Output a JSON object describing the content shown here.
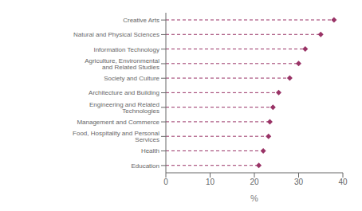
{
  "chart_data": {
    "type": "lollipop",
    "orientation": "horizontal",
    "categories": [
      "Education",
      "Health",
      "Food, Hospitality and Personal Services",
      "Management and Commerce",
      "Engineering and Related Technologies",
      "Architecture and Building",
      "Society and Culture",
      "Agriculture, Environmental and Related Studies",
      "Information Technology",
      "Natural and Physical Sciences",
      "Creative Arts"
    ],
    "values": [
      21.0,
      22.0,
      23.2,
      23.5,
      24.2,
      25.5,
      28.0,
      30.0,
      31.5,
      35.0,
      38.0
    ],
    "color": "#993366",
    "marker": "diamond",
    "line_style": "dashed",
    "xlabel": "%",
    "xlim": [
      0,
      40
    ],
    "xticks": [
      0,
      10,
      20,
      30,
      40
    ],
    "grid": false
  }
}
